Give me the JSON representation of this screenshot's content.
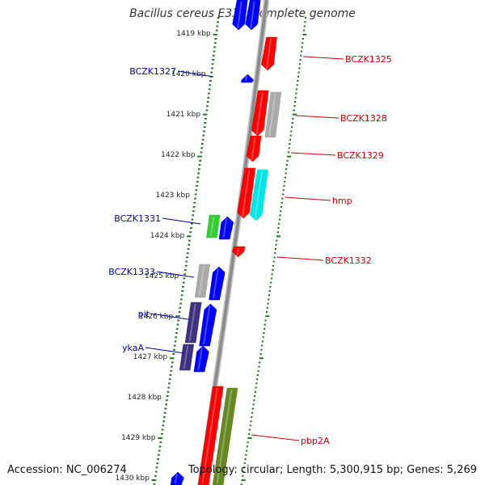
{
  "title": "Bacillus cereus E33L, complete genome",
  "accession": "Accession: NC_006274",
  "summary": "Topology: circular; Length: 5,300,915 bp; Genes: 5,269",
  "colors": {
    "backbone": "#8a8a8a",
    "tick": "#1a7a1a",
    "forward_label": "#cc0000",
    "reverse_label": "#00009f",
    "gene_red": "#ff0000",
    "gene_blue": "#0000ff",
    "gene_gray": "#aaaaaa",
    "gene_cyan": "#00e5e5",
    "gene_green": "#33cc33",
    "gene_purple": "#3d3180",
    "gene_olive": "#668822"
  },
  "scale_labels": [
    "1419 kbp",
    "1420 kbp",
    "1421 kbp",
    "1422 kbp",
    "1423 kbp",
    "1424 kbp",
    "1425 kbp",
    "1426 kbp",
    "1427 kbp",
    "1428 kbp",
    "1429 kbp",
    "1430 kbp"
  ],
  "forward_gene_labels": [
    "BCZK1325",
    "BCZK1328",
    "BCZK1329",
    "hmp",
    "BCZK1332",
    "pbp2A"
  ],
  "reverse_gene_labels": [
    "BCZK1327",
    "BCZK1331",
    "BCZK1333",
    "pit",
    "ykaA"
  ]
}
